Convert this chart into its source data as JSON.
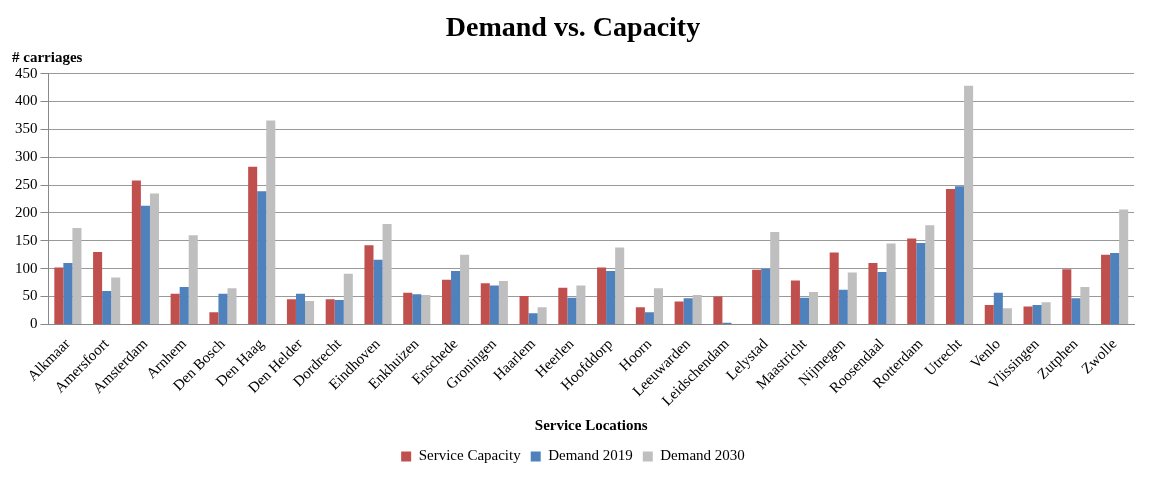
{
  "chart_data": {
    "type": "bar",
    "title": "Demand vs. Capacity",
    "xlabel": "Service Locations",
    "ylabel": "# carriages",
    "categories": [
      "Alkmaar",
      "Amersfoort",
      "Amsterdam",
      "Arnhem",
      "Den Bosch",
      "Den Haag",
      "Den Helder",
      "Dordrecht",
      "Eindhoven",
      "Enkhuizen",
      "Enschede",
      "Groningen",
      "Haarlem",
      "Heerlen",
      "Hoofddorp",
      "Hoorn",
      "Leeuwarden",
      "Leidschendam",
      "Lelystad",
      "Maastricht",
      "Nijmegen",
      "Roosendaal",
      "Rotterdam",
      "Utrecht",
      "Venlo",
      "Vlissingen",
      "Zutphen",
      "Zwolle"
    ],
    "series": [
      {
        "name": "Service Capacity",
        "color": "#c0504d",
        "values": [
          102,
          130,
          258,
          55,
          22,
          283,
          45,
          45,
          142,
          57,
          80,
          74,
          51,
          66,
          102,
          31,
          41,
          50,
          98,
          79,
          129,
          110,
          154,
          243,
          35,
          32,
          99,
          125
        ]
      },
      {
        "name": "Demand 2019",
        "color": "#4f81bd",
        "values": [
          110,
          60,
          213,
          67,
          55,
          239,
          55,
          44,
          116,
          54,
          96,
          70,
          20,
          48,
          96,
          22,
          47,
          3,
          100,
          48,
          62,
          94,
          146,
          248,
          57,
          35,
          47,
          128
        ]
      },
      {
        "name": "Demand 2030",
        "color": "#bfbfbf",
        "values": [
          173,
          84,
          235,
          160,
          65,
          366,
          42,
          91,
          180,
          53,
          125,
          78,
          31,
          70,
          138,
          65,
          53,
          0,
          166,
          58,
          93,
          145,
          178,
          428,
          29,
          40,
          67,
          206
        ]
      }
    ],
    "ylim": [
      0,
      450
    ],
    "yticks": [
      0,
      50,
      100,
      150,
      200,
      250,
      300,
      350,
      400,
      450
    ],
    "grid": "y",
    "legend": "bottom"
  }
}
